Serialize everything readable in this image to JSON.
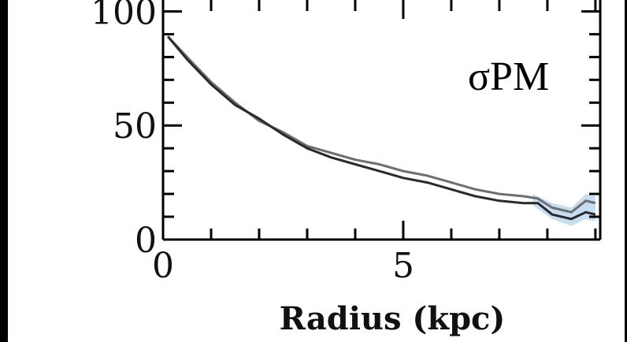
{
  "chart_data": {
    "type": "line",
    "title": "",
    "xlabel": "Radius (kpc)",
    "ylabel": "",
    "xlim": [
      0,
      9.1
    ],
    "ylim": [
      0,
      105
    ],
    "x_ticks": [
      0,
      5
    ],
    "x_tick_labels": [
      "0",
      "5"
    ],
    "y_ticks": [
      0,
      50,
      100
    ],
    "y_tick_labels": [
      "0",
      "50",
      "100"
    ],
    "annotation": "σPM",
    "grid": false,
    "legend": "none",
    "colors": {
      "series_a": "#6e6e6e",
      "series_b": "#2a2a2a",
      "band": "#b8d4ef",
      "frame": "#000000"
    },
    "series": [
      {
        "x": [
          0.1,
          0.5,
          1.0,
          1.5,
          2.0,
          2.5,
          3.0,
          3.5,
          4.0,
          4.5,
          5.0,
          5.5,
          6.0,
          6.5,
          7.0,
          7.5,
          7.8,
          8.1,
          8.5,
          8.8,
          9.0
        ],
        "y": [
          89,
          80,
          69,
          60,
          52,
          47,
          41,
          38,
          35,
          33,
          30,
          28,
          25,
          22,
          20,
          19,
          18,
          14,
          12,
          17,
          16
        ]
      },
      {
        "x": [
          0.1,
          0.5,
          1.0,
          1.5,
          2.0,
          2.5,
          3.0,
          3.5,
          4.0,
          4.5,
          5.0,
          5.5,
          6.0,
          6.5,
          7.0,
          7.5,
          7.8,
          8.1,
          8.5,
          8.8,
          9.0
        ],
        "y": [
          89,
          79,
          68,
          59,
          53,
          46,
          40,
          36,
          33,
          30,
          27,
          25,
          22,
          19,
          17,
          16,
          16,
          11,
          9,
          12,
          11
        ]
      }
    ],
    "band": {
      "x": [
        7.7,
        8.1,
        8.5,
        8.8,
        9.0
      ],
      "low": [
        15,
        9,
        6,
        9,
        8
      ],
      "high": [
        20,
        16,
        14,
        20,
        19
      ]
    }
  }
}
